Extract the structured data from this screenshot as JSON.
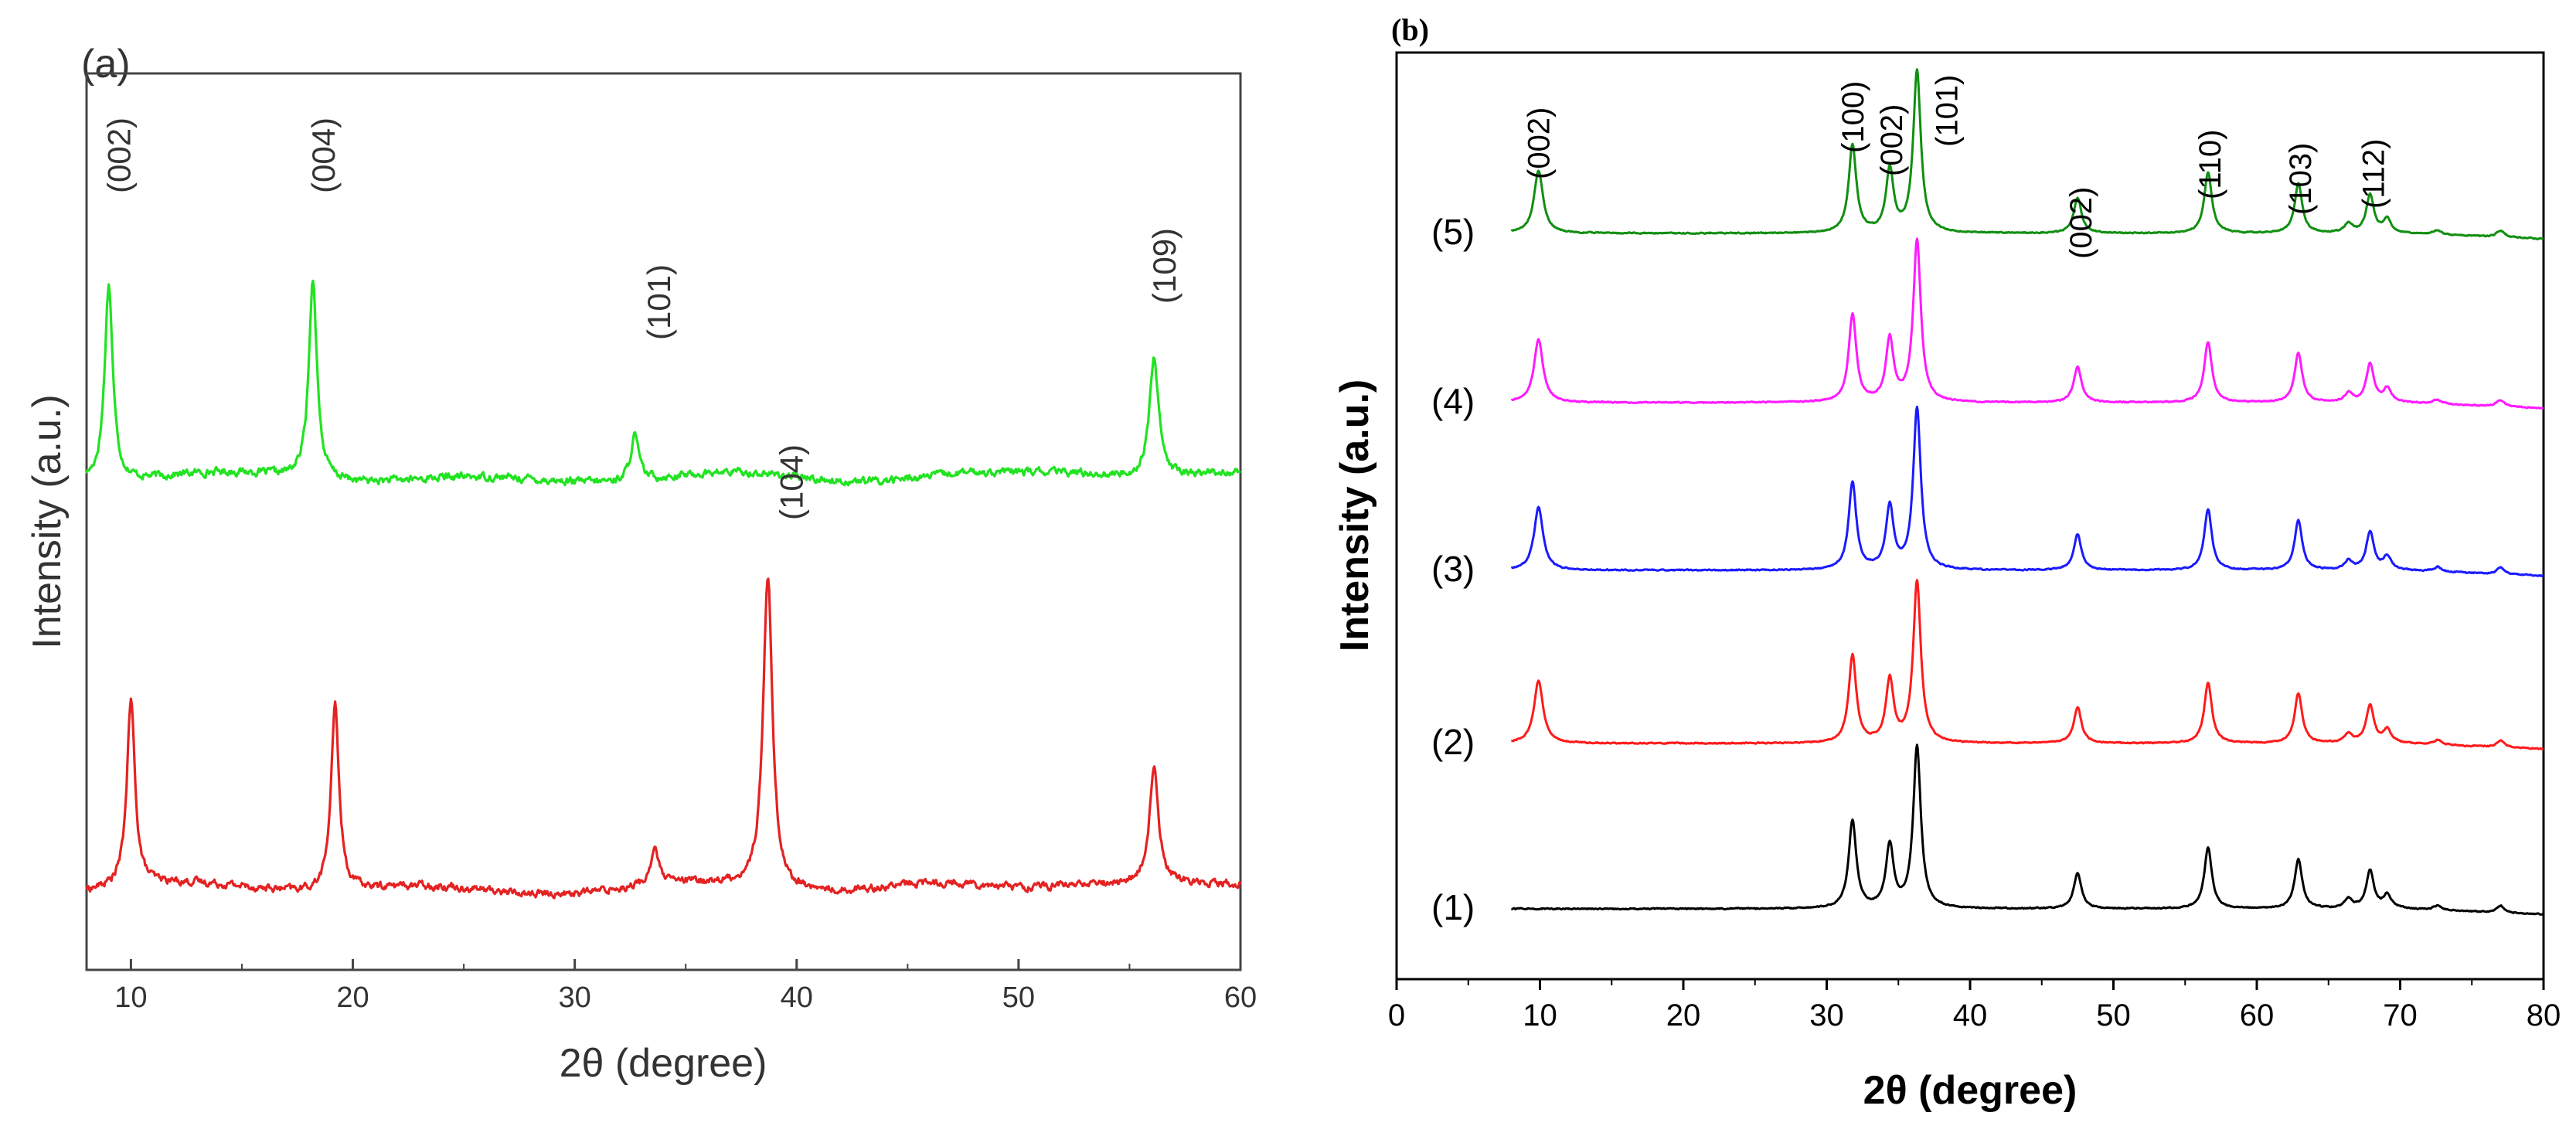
{
  "chart_data": [
    {
      "id": "a",
      "type": "line",
      "panel_label": "(a)",
      "xlabel": "2θ (degree)",
      "ylabel": "Intensity (a.u.)",
      "xlim": [
        8,
        60
      ],
      "x_ticks": [
        10,
        20,
        30,
        40,
        50,
        60
      ],
      "y_ticks": [],
      "series": [
        {
          "name": "upper (green)",
          "color": "#21e321",
          "baseline": 0.6,
          "peaks": [
            {
              "x": 9.0,
              "h": 5.2,
              "w": 0.22
            },
            {
              "x": 18.2,
              "h": 5.3,
              "w": 0.22
            },
            {
              "x": 32.7,
              "h": 1.2,
              "w": 0.22
            },
            {
              "x": 56.1,
              "h": 3.2,
              "w": 0.25
            }
          ],
          "peak_labels": [
            {
              "x": 9.0,
              "text": "(002)"
            },
            {
              "x": 18.2,
              "text": "(004)"
            },
            {
              "x": 32.7,
              "text": "(101)"
            },
            {
              "x": 56.1,
              "text": "(109)"
            }
          ]
        },
        {
          "name": "lower (red)",
          "color": "#e42222",
          "baseline": 0.0,
          "peaks": [
            {
              "x": 10.0,
              "h": 4.9,
              "w": 0.22
            },
            {
              "x": 19.2,
              "h": 4.9,
              "w": 0.22
            },
            {
              "x": 33.6,
              "h": 1.0,
              "w": 0.2
            },
            {
              "x": 38.7,
              "h": 8.3,
              "w": 0.25
            },
            {
              "x": 56.1,
              "h": 3.0,
              "w": 0.25
            }
          ],
          "peak_labels": [
            {
              "x": 38.7,
              "text": "(104)"
            }
          ]
        }
      ]
    },
    {
      "id": "b",
      "type": "line",
      "panel_label": "(b)",
      "xlabel": "2θ (degree)",
      "ylabel": "Intensity (a.u.)",
      "xlim": [
        0,
        80
      ],
      "x_ticks": [
        0,
        10,
        20,
        30,
        40,
        50,
        60,
        70,
        80
      ],
      "y_ticks": [],
      "series": [
        {
          "name": "(1)",
          "color": "#000000",
          "has_002_low_angle": false
        },
        {
          "name": "(2)",
          "color": "#ff1a1a",
          "has_002_low_angle": true
        },
        {
          "name": "(3)",
          "color": "#1a1aff",
          "has_002_low_angle": true
        },
        {
          "name": "(4)",
          "color": "#ff1aff",
          "has_002_low_angle": true
        },
        {
          "name": "(5)",
          "color": "#118f11",
          "has_002_low_angle": true
        }
      ],
      "zno_peaks": [
        {
          "x": 31.8,
          "h": 3.9
        },
        {
          "x": 34.4,
          "h": 2.8
        },
        {
          "x": 36.3,
          "h": 7.2
        },
        {
          "x": 47.5,
          "h": 1.6
        },
        {
          "x": 56.6,
          "h": 2.7
        },
        {
          "x": 62.9,
          "h": 2.2
        },
        {
          "x": 66.4,
          "h": 0.4
        },
        {
          "x": 67.9,
          "h": 1.7
        },
        {
          "x": 69.1,
          "h": 0.6
        },
        {
          "x": 72.6,
          "h": 0.2
        },
        {
          "x": 77.0,
          "h": 0.3
        }
      ],
      "low_angle_peak": {
        "x": 9.9,
        "h": 2.8
      },
      "peak_labels": [
        {
          "x": 9.9,
          "text": "(002)"
        },
        {
          "x": 31.7,
          "text": "(100)"
        },
        {
          "x": 34.4,
          "text": "(002)"
        },
        {
          "x": 36.3,
          "text": "(101)"
        },
        {
          "x": 47.6,
          "text": "(002)"
        },
        {
          "x": 56.6,
          "text": "(110)"
        },
        {
          "x": 62.9,
          "text": "(103)"
        },
        {
          "x": 68.0,
          "text": "(112)"
        }
      ]
    }
  ]
}
